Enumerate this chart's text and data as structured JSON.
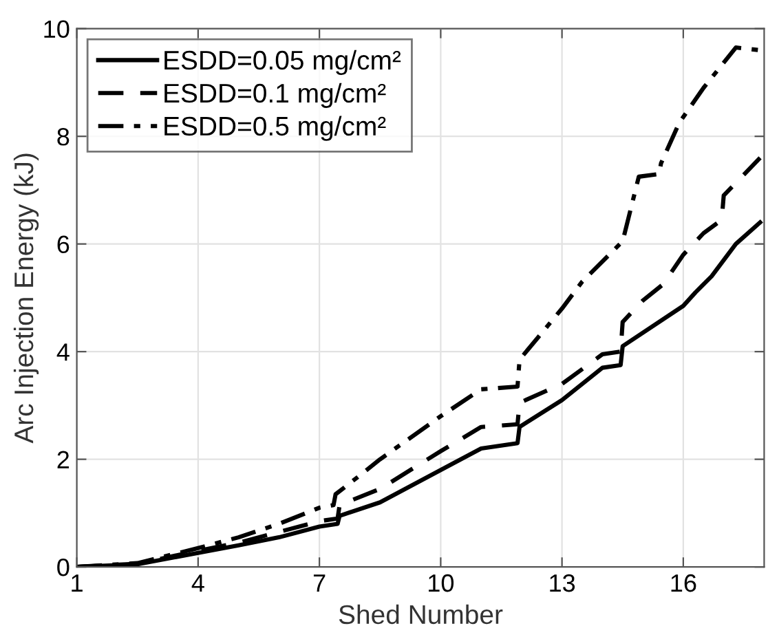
{
  "chart_data": {
    "type": "line",
    "xlabel": "Shed Number",
    "ylabel": "Arc Injection Energy (kJ)",
    "xlim": [
      1,
      18
    ],
    "ylim": [
      0,
      10
    ],
    "xticks": [
      1,
      4,
      7,
      10,
      13,
      16
    ],
    "yticks": [
      0,
      2,
      4,
      6,
      8,
      10
    ],
    "grid": true,
    "legend": "top left",
    "marker": "none",
    "series": [
      {
        "name": "ESDD=0.05 mg/cm²",
        "color": "#000000",
        "line_style": "solid",
        "x": [
          1,
          2.5,
          4,
          5,
          6,
          7,
          7.45,
          7.5,
          8.5,
          10,
          11,
          11.9,
          11.95,
          13,
          14,
          14.45,
          14.5,
          16,
          16.3,
          16.7,
          17.3,
          17.9
        ],
        "values": [
          0,
          0.05,
          0.26,
          0.4,
          0.55,
          0.75,
          0.8,
          0.95,
          1.2,
          1.8,
          2.2,
          2.3,
          2.6,
          3.1,
          3.7,
          3.75,
          4.1,
          4.85,
          5.1,
          5.4,
          6.0,
          6.4
        ]
      },
      {
        "name": "ESDD=0.1 mg/cm²",
        "color": "#000000",
        "line_style": "dashed",
        "x": [
          1,
          2.5,
          4,
          5,
          6,
          7,
          7.45,
          7.5,
          8.5,
          10,
          11,
          11.9,
          11.95,
          13,
          14,
          14.45,
          14.5,
          15,
          15.5,
          16,
          16.5,
          16.95,
          17,
          17.9
        ],
        "values": [
          0,
          0.06,
          0.3,
          0.45,
          0.65,
          0.85,
          0.9,
          1.15,
          1.45,
          2.15,
          2.6,
          2.65,
          3.05,
          3.4,
          3.95,
          4.0,
          4.55,
          4.95,
          5.25,
          5.8,
          6.2,
          6.45,
          6.9,
          7.6
        ]
      },
      {
        "name": "ESDD=0.5 mg/cm²",
        "color": "#000000",
        "line_style": "dashdot",
        "x": [
          1,
          2.5,
          4,
          5,
          6,
          7,
          7.35,
          7.4,
          8,
          8.5,
          10,
          11,
          11.9,
          11.95,
          13,
          13.5,
          14.5,
          14.9,
          15.4,
          15.45,
          15.9,
          16.5,
          17.3,
          17.9
        ],
        "values": [
          0,
          0.07,
          0.35,
          0.55,
          0.8,
          1.1,
          1.15,
          1.35,
          1.7,
          2.0,
          2.8,
          3.3,
          3.35,
          3.85,
          4.8,
          5.3,
          6.05,
          7.25,
          7.3,
          7.5,
          8.25,
          8.9,
          9.65,
          9.6
        ]
      }
    ]
  }
}
